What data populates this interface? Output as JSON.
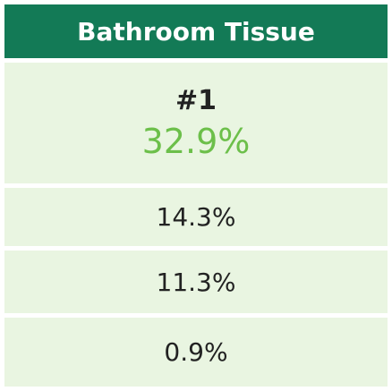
{
  "header": {
    "title": "Bathroom Tissue"
  },
  "rank": "#1",
  "rows": [
    "32.9%",
    "14.3%",
    "11.3%",
    "0.9%"
  ]
}
